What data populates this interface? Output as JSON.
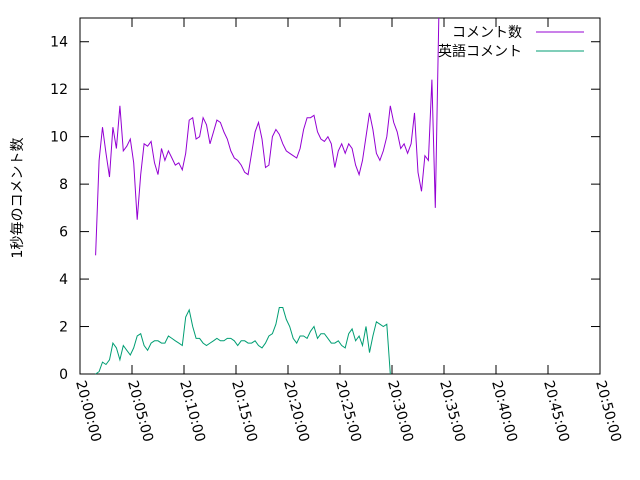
{
  "chart_data": {
    "type": "line",
    "title": "",
    "xlabel": "",
    "ylabel": "1秒毎のコメント数",
    "xlim": [
      "20:00:00",
      "20:50:00"
    ],
    "ylim": [
      0,
      15
    ],
    "x_ticks": [
      "20:00:00",
      "20:05:00",
      "20:10:00",
      "20:15:00",
      "20:20:00",
      "20:25:00",
      "20:30:00",
      "20:35:00",
      "20:40:00",
      "20:45:00",
      "20:50:00"
    ],
    "y_ticks": [
      0,
      2,
      4,
      6,
      8,
      10,
      12,
      14
    ],
    "grid": false,
    "legend_position": "top-right",
    "series": [
      {
        "name": "コメント数",
        "color": "#9400d3",
        "points": [
          [
            "20:01:30",
            5.0
          ],
          [
            "20:01:50",
            9.0
          ],
          [
            "20:02:10",
            10.4
          ],
          [
            "20:02:30",
            9.3
          ],
          [
            "20:02:50",
            8.3
          ],
          [
            "20:03:10",
            10.4
          ],
          [
            "20:03:30",
            9.5
          ],
          [
            "20:03:50",
            11.3
          ],
          [
            "20:04:10",
            9.4
          ],
          [
            "20:04:30",
            9.6
          ],
          [
            "20:04:50",
            9.9
          ],
          [
            "20:05:10",
            8.9
          ],
          [
            "20:05:30",
            6.5
          ],
          [
            "20:05:50",
            8.4
          ],
          [
            "20:06:10",
            9.7
          ],
          [
            "20:06:30",
            9.6
          ],
          [
            "20:06:50",
            9.8
          ],
          [
            "20:07:10",
            8.9
          ],
          [
            "20:07:30",
            8.4
          ],
          [
            "20:07:50",
            9.5
          ],
          [
            "20:08:10",
            9.0
          ],
          [
            "20:08:30",
            9.4
          ],
          [
            "20:08:50",
            9.1
          ],
          [
            "20:09:10",
            8.8
          ],
          [
            "20:09:30",
            8.9
          ],
          [
            "20:09:50",
            8.6
          ],
          [
            "20:10:10",
            9.3
          ],
          [
            "20:10:30",
            10.7
          ],
          [
            "20:10:50",
            10.8
          ],
          [
            "20:11:10",
            9.9
          ],
          [
            "20:11:30",
            10.0
          ],
          [
            "20:11:50",
            10.8
          ],
          [
            "20:12:10",
            10.5
          ],
          [
            "20:12:30",
            9.7
          ],
          [
            "20:12:50",
            10.2
          ],
          [
            "20:13:10",
            10.7
          ],
          [
            "20:13:30",
            10.6
          ],
          [
            "20:13:50",
            10.2
          ],
          [
            "20:14:10",
            9.9
          ],
          [
            "20:14:30",
            9.4
          ],
          [
            "20:14:50",
            9.1
          ],
          [
            "20:15:10",
            9.0
          ],
          [
            "20:15:30",
            8.8
          ],
          [
            "20:15:50",
            8.5
          ],
          [
            "20:16:10",
            8.4
          ],
          [
            "20:16:30",
            9.3
          ],
          [
            "20:16:50",
            10.2
          ],
          [
            "20:17:10",
            10.6
          ],
          [
            "20:17:30",
            9.9
          ],
          [
            "20:17:50",
            8.7
          ],
          [
            "20:18:10",
            8.8
          ],
          [
            "20:18:30",
            10.0
          ],
          [
            "20:18:50",
            10.3
          ],
          [
            "20:19:10",
            10.1
          ],
          [
            "20:19:30",
            9.7
          ],
          [
            "20:19:50",
            9.4
          ],
          [
            "20:20:10",
            9.3
          ],
          [
            "20:20:30",
            9.2
          ],
          [
            "20:20:50",
            9.1
          ],
          [
            "20:21:10",
            9.5
          ],
          [
            "20:21:30",
            10.3
          ],
          [
            "20:21:50",
            10.8
          ],
          [
            "20:22:10",
            10.8
          ],
          [
            "20:22:30",
            10.9
          ],
          [
            "20:22:50",
            10.2
          ],
          [
            "20:23:10",
            9.9
          ],
          [
            "20:23:30",
            9.8
          ],
          [
            "20:23:50",
            10.0
          ],
          [
            "20:24:10",
            9.7
          ],
          [
            "20:24:30",
            8.7
          ],
          [
            "20:24:50",
            9.4
          ],
          [
            "20:25:10",
            9.7
          ],
          [
            "20:25:30",
            9.3
          ],
          [
            "20:25:50",
            9.7
          ],
          [
            "20:26:10",
            9.5
          ],
          [
            "20:26:30",
            8.8
          ],
          [
            "20:26:50",
            8.4
          ],
          [
            "20:27:10",
            9.0
          ],
          [
            "20:27:30",
            10.0
          ],
          [
            "20:27:50",
            11.0
          ],
          [
            "20:28:10",
            10.3
          ],
          [
            "20:28:30",
            9.3
          ],
          [
            "20:28:50",
            9.0
          ],
          [
            "20:29:10",
            9.4
          ],
          [
            "20:29:30",
            10.0
          ],
          [
            "20:29:50",
            11.3
          ],
          [
            "20:30:10",
            10.6
          ],
          [
            "20:30:30",
            10.2
          ],
          [
            "20:30:50",
            9.5
          ],
          [
            "20:31:10",
            9.7
          ],
          [
            "20:31:30",
            9.3
          ],
          [
            "20:31:50",
            9.7
          ],
          [
            "20:32:10",
            11.0
          ],
          [
            "20:32:30",
            8.5
          ],
          [
            "20:32:50",
            7.7
          ],
          [
            "20:33:10",
            9.2
          ],
          [
            "20:33:30",
            9.0
          ],
          [
            "20:33:50",
            12.4
          ],
          [
            "20:34:10",
            7.0
          ],
          [
            "20:34:30",
            15.0
          ]
        ]
      },
      {
        "name": "英語コメント",
        "color": "#009e73",
        "points": [
          [
            "20:01:30",
            0.0
          ],
          [
            "20:01:50",
            0.1
          ],
          [
            "20:02:10",
            0.5
          ],
          [
            "20:02:30",
            0.4
          ],
          [
            "20:02:50",
            0.6
          ],
          [
            "20:03:10",
            1.3
          ],
          [
            "20:03:30",
            1.1
          ],
          [
            "20:03:50",
            0.6
          ],
          [
            "20:04:10",
            1.2
          ],
          [
            "20:04:30",
            1.0
          ],
          [
            "20:04:50",
            0.8
          ],
          [
            "20:05:10",
            1.1
          ],
          [
            "20:05:30",
            1.6
          ],
          [
            "20:05:50",
            1.7
          ],
          [
            "20:06:10",
            1.2
          ],
          [
            "20:06:30",
            1.0
          ],
          [
            "20:06:50",
            1.3
          ],
          [
            "20:07:10",
            1.4
          ],
          [
            "20:07:30",
            1.4
          ],
          [
            "20:07:50",
            1.3
          ],
          [
            "20:08:10",
            1.3
          ],
          [
            "20:08:30",
            1.6
          ],
          [
            "20:08:50",
            1.5
          ],
          [
            "20:09:10",
            1.4
          ],
          [
            "20:09:30",
            1.3
          ],
          [
            "20:09:50",
            1.2
          ],
          [
            "20:10:10",
            2.4
          ],
          [
            "20:10:30",
            2.7
          ],
          [
            "20:10:50",
            2.0
          ],
          [
            "20:11:10",
            1.5
          ],
          [
            "20:11:30",
            1.5
          ],
          [
            "20:11:50",
            1.3
          ],
          [
            "20:12:10",
            1.2
          ],
          [
            "20:12:30",
            1.3
          ],
          [
            "20:12:50",
            1.4
          ],
          [
            "20:13:10",
            1.5
          ],
          [
            "20:13:30",
            1.4
          ],
          [
            "20:13:50",
            1.4
          ],
          [
            "20:14:10",
            1.5
          ],
          [
            "20:14:30",
            1.5
          ],
          [
            "20:14:50",
            1.4
          ],
          [
            "20:15:10",
            1.2
          ],
          [
            "20:15:30",
            1.4
          ],
          [
            "20:15:50",
            1.4
          ],
          [
            "20:16:10",
            1.3
          ],
          [
            "20:16:30",
            1.3
          ],
          [
            "20:16:50",
            1.4
          ],
          [
            "20:17:10",
            1.2
          ],
          [
            "20:17:30",
            1.1
          ],
          [
            "20:17:50",
            1.3
          ],
          [
            "20:18:10",
            1.6
          ],
          [
            "20:18:30",
            1.7
          ],
          [
            "20:18:50",
            2.1
          ],
          [
            "20:19:10",
            2.8
          ],
          [
            "20:19:30",
            2.8
          ],
          [
            "20:19:50",
            2.3
          ],
          [
            "20:20:10",
            2.0
          ],
          [
            "20:20:30",
            1.5
          ],
          [
            "20:20:50",
            1.3
          ],
          [
            "20:21:10",
            1.6
          ],
          [
            "20:21:30",
            1.6
          ],
          [
            "20:21:50",
            1.5
          ],
          [
            "20:22:10",
            1.8
          ],
          [
            "20:22:30",
            2.0
          ],
          [
            "20:22:50",
            1.5
          ],
          [
            "20:23:10",
            1.7
          ],
          [
            "20:23:30",
            1.7
          ],
          [
            "20:23:50",
            1.5
          ],
          [
            "20:24:10",
            1.3
          ],
          [
            "20:24:30",
            1.3
          ],
          [
            "20:24:50",
            1.4
          ],
          [
            "20:25:10",
            1.2
          ],
          [
            "20:25:30",
            1.1
          ],
          [
            "20:25:50",
            1.7
          ],
          [
            "20:26:10",
            1.9
          ],
          [
            "20:26:30",
            1.4
          ],
          [
            "20:26:50",
            1.6
          ],
          [
            "20:27:10",
            1.2
          ],
          [
            "20:27:30",
            2.0
          ],
          [
            "20:27:50",
            0.9
          ],
          [
            "20:28:10",
            1.6
          ],
          [
            "20:28:30",
            2.2
          ],
          [
            "20:28:50",
            2.1
          ],
          [
            "20:29:10",
            2.0
          ],
          [
            "20:29:30",
            2.1
          ],
          [
            "20:29:50",
            0.0
          ]
        ]
      }
    ]
  }
}
